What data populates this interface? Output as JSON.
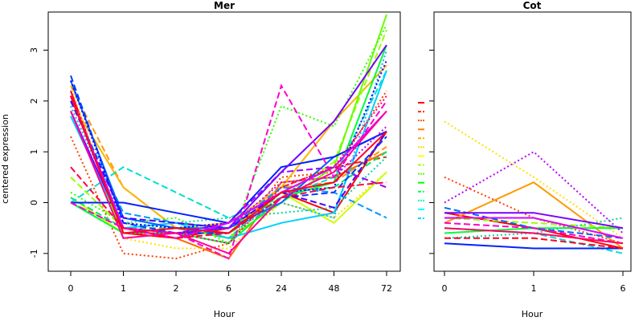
{
  "chart_data": [
    {
      "type": "line",
      "title": "Mer",
      "xlabel": "Hour",
      "ylabel": "centered expression",
      "categories": [
        "0",
        "1",
        "2",
        "6",
        "24",
        "48",
        "72"
      ],
      "ylim": [
        -1.35,
        3.75
      ],
      "yticks": [
        -1,
        0,
        1,
        2,
        3
      ],
      "series": [
        {
          "color": "#ff0000",
          "dash": "solid",
          "values": [
            2.2,
            -0.6,
            -0.7,
            -0.5,
            0.2,
            -0.2,
            1.4
          ]
        },
        {
          "color": "#ff1a00",
          "dash": "dashed",
          "values": [
            2.1,
            -0.5,
            -0.6,
            -0.6,
            0.3,
            0.7,
            0.9
          ]
        },
        {
          "color": "#ff4000",
          "dash": "dotted",
          "values": [
            1.3,
            -1.0,
            -1.1,
            -0.8,
            0.5,
            0.6,
            2.2
          ]
        },
        {
          "color": "#ff6600",
          "dash": "solid",
          "values": [
            2.1,
            -0.5,
            -0.7,
            -1.1,
            0.4,
            0.5,
            1.0
          ]
        },
        {
          "color": "#ff9900",
          "dash": "dashed",
          "values": [
            2.3,
            0.3,
            -0.5,
            -0.6,
            0.3,
            0.4,
            1.1
          ]
        },
        {
          "color": "#ffb300",
          "dash": "solid",
          "values": [
            2.0,
            0.3,
            -0.5,
            -0.4,
            0.3,
            1.6,
            2.7
          ]
        },
        {
          "color": "#ffe000",
          "dash": "dotted",
          "values": [
            2.3,
            -0.7,
            -0.9,
            -0.9,
            0.0,
            -0.3,
            0.6
          ]
        },
        {
          "color": "#ccff00",
          "dash": "solid",
          "values": [
            0.1,
            -0.6,
            -0.5,
            -0.6,
            0.2,
            -0.4,
            0.6
          ]
        },
        {
          "color": "#99ff00",
          "dash": "dashed",
          "values": [
            0.5,
            -0.5,
            -0.4,
            -0.5,
            0.1,
            0.8,
            3.4
          ]
        },
        {
          "color": "#66ff00",
          "dash": "solid",
          "values": [
            1.8,
            -0.6,
            -0.5,
            -0.7,
            0.0,
            0.7,
            3.7
          ]
        },
        {
          "color": "#33ff00",
          "dash": "dotted",
          "values": [
            0.2,
            -0.4,
            -0.3,
            -0.8,
            1.9,
            1.5,
            3.5
          ]
        },
        {
          "color": "#00ff33",
          "dash": "solid",
          "values": [
            0.0,
            -0.6,
            -0.6,
            -0.8,
            0.1,
            0.4,
            3.1
          ]
        },
        {
          "color": "#00e666",
          "dash": "dashed",
          "values": [
            0.1,
            -0.5,
            -0.5,
            -0.7,
            0.2,
            0.3,
            1.0
          ]
        },
        {
          "color": "#00d9a0",
          "dash": "dotted",
          "values": [
            0.0,
            -0.5,
            -0.4,
            -0.3,
            -0.2,
            -0.1,
            0.9
          ]
        },
        {
          "color": "#00e0d0",
          "dash": "dashed",
          "values": [
            0.0,
            0.7,
            0.2,
            -0.3,
            0.1,
            0.5,
            2.6
          ]
        },
        {
          "color": "#00d0ff",
          "dash": "solid",
          "values": [
            1.7,
            -0.5,
            -0.4,
            -0.7,
            -0.4,
            -0.2,
            2.6
          ]
        },
        {
          "color": "#00b3ff",
          "dash": "dotted",
          "values": [
            1.9,
            -0.4,
            -0.5,
            -0.6,
            0.0,
            -0.3,
            3.0
          ]
        },
        {
          "color": "#0099ff",
          "dash": "dashed",
          "values": [
            2.0,
            -0.2,
            -0.4,
            -0.5,
            0.3,
            0.2,
            -0.3
          ]
        },
        {
          "color": "#0066ff",
          "dash": "solid",
          "values": [
            2.4,
            -0.3,
            -0.5,
            -0.5,
            0.0,
            0.9,
            1.4
          ]
        },
        {
          "color": "#0040ff",
          "dash": "dashed",
          "values": [
            2.5,
            -0.4,
            -0.6,
            -0.6,
            0.1,
            0.2,
            1.3
          ]
        },
        {
          "color": "#0022ff",
          "dash": "solid",
          "values": [
            0.0,
            0.0,
            -0.2,
            -0.4,
            0.7,
            0.9,
            1.4
          ]
        },
        {
          "color": "#1a00ff",
          "dash": "dotted",
          "values": [
            2.4,
            -0.4,
            -0.5,
            -0.4,
            0.2,
            0.3,
            2.8
          ]
        },
        {
          "color": "#4400ff",
          "dash": "dashed",
          "values": [
            2.0,
            -0.3,
            -0.4,
            -0.5,
            0.2,
            -0.1,
            1.4
          ]
        },
        {
          "color": "#7700ff",
          "dash": "solid",
          "values": [
            1.8,
            -0.5,
            -0.6,
            -0.5,
            0.6,
            1.6,
            3.1
          ]
        },
        {
          "color": "#9900ff",
          "dash": "dashed",
          "values": [
            2.1,
            -0.5,
            -0.6,
            -0.4,
            0.6,
            0.7,
            0.3
          ]
        },
        {
          "color": "#bb00ff",
          "dash": "dotted",
          "values": [
            2.1,
            -0.6,
            -0.6,
            -0.5,
            0.4,
            0.5,
            1.5
          ]
        },
        {
          "color": "#dd00ff",
          "dash": "solid",
          "values": [
            2.1,
            -0.5,
            -0.7,
            -0.4,
            0.2,
            0.7,
            1.8
          ]
        },
        {
          "color": "#ff00cc",
          "dash": "dashed",
          "values": [
            0.0,
            -0.5,
            -0.6,
            -1.1,
            2.3,
            0.5,
            2.0
          ]
        },
        {
          "color": "#ff0099",
          "dash": "solid",
          "values": [
            1.8,
            -0.7,
            -0.6,
            -1.0,
            0.1,
            0.6,
            1.8
          ]
        },
        {
          "color": "#ff0066",
          "dash": "dotted",
          "values": [
            2.2,
            -0.6,
            -0.6,
            -0.8,
            0.3,
            0.7,
            2.1
          ]
        },
        {
          "color": "#ff0040",
          "dash": "dashed",
          "values": [
            0.7,
            -0.5,
            -0.7,
            -0.6,
            0.1,
            0.3,
            0.4
          ]
        },
        {
          "color": "#ff0022",
          "dash": "solid",
          "values": [
            2.1,
            -0.6,
            -0.5,
            -0.6,
            0.2,
            0.4,
            1.4
          ]
        }
      ]
    },
    {
      "type": "line",
      "title": "Cot",
      "xlabel": "Hour",
      "categories": [
        "0",
        "1",
        "6"
      ],
      "ylim": [
        -1.35,
        3.75
      ],
      "legend_swatches": [
        {
          "color": "#ff0000",
          "dash": "solid"
        },
        {
          "color": "#ff2a00",
          "dash": "dashed"
        },
        {
          "color": "#ff5500",
          "dash": "dotted"
        },
        {
          "color": "#ff8000",
          "dash": "solid"
        },
        {
          "color": "#ffaa00",
          "dash": "dashed"
        },
        {
          "color": "#ffd500",
          "dash": "dotted"
        },
        {
          "color": "#ffff00",
          "dash": "solid"
        },
        {
          "color": "#aaff00",
          "dash": "dashed"
        },
        {
          "color": "#55ff00",
          "dash": "dotted"
        },
        {
          "color": "#00ff00",
          "dash": "solid"
        },
        {
          "color": "#00ff55",
          "dash": "dashed"
        },
        {
          "color": "#00ffaa",
          "dash": "dotted"
        },
        {
          "color": "#00ffff",
          "dash": "solid"
        },
        {
          "color": "#00d5ff",
          "dash": "dashed"
        }
      ],
      "series": [
        {
          "color": "#ff0000",
          "dash": "solid",
          "values": [
            -0.2,
            -0.5,
            -0.9
          ]
        },
        {
          "color": "#ff4000",
          "dash": "dotted",
          "values": [
            0.5,
            -0.3,
            -0.8
          ]
        },
        {
          "color": "#ff9900",
          "dash": "solid",
          "values": [
            -0.4,
            0.4,
            -0.9
          ]
        },
        {
          "color": "#ffe000",
          "dash": "dotted",
          "values": [
            1.6,
            0.5,
            -0.7
          ]
        },
        {
          "color": "#99ff00",
          "dash": "dashed",
          "values": [
            -0.3,
            -0.4,
            -0.5
          ]
        },
        {
          "color": "#00ff33",
          "dash": "solid",
          "values": [
            -0.6,
            -0.5,
            -0.5
          ]
        },
        {
          "color": "#00d9a0",
          "dash": "dotted",
          "values": [
            -0.7,
            -0.6,
            -0.3
          ]
        },
        {
          "color": "#00e0d0",
          "dash": "dashed",
          "values": [
            -0.5,
            -0.6,
            -1.0
          ]
        },
        {
          "color": "#0066ff",
          "dash": "dashed",
          "values": [
            -0.1,
            -0.5,
            -0.7
          ]
        },
        {
          "color": "#0022ff",
          "dash": "solid",
          "values": [
            -0.8,
            -0.9,
            -0.9
          ]
        },
        {
          "color": "#7700ff",
          "dash": "solid",
          "values": [
            -0.2,
            -0.2,
            -0.5
          ]
        },
        {
          "color": "#bb00ff",
          "dash": "dotted",
          "values": [
            0.0,
            1.0,
            -0.6
          ]
        },
        {
          "color": "#dd00ff",
          "dash": "solid",
          "values": [
            -0.3,
            -0.3,
            -0.7
          ]
        },
        {
          "color": "#ff00cc",
          "dash": "dashed",
          "values": [
            -0.4,
            -0.5,
            -0.8
          ]
        },
        {
          "color": "#ff0066",
          "dash": "solid",
          "values": [
            -0.5,
            -0.6,
            -0.8
          ]
        },
        {
          "color": "#ff0022",
          "dash": "dashed",
          "values": [
            -0.7,
            -0.7,
            -0.9
          ]
        }
      ]
    }
  ]
}
